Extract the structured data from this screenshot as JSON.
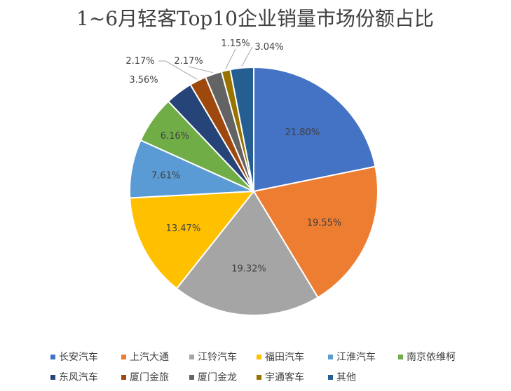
{
  "chart_data": {
    "type": "pie",
    "title": "1~6月轻客Top10企业销量市场份额占比",
    "categories": [
      "长安汽车",
      "上汽大通",
      "江铃汽车",
      "福田汽车",
      "江淮汽车",
      "南京依维柯",
      "东风汽车",
      "厦门金旅",
      "厦门金龙",
      "宇通客车",
      "其他"
    ],
    "values": [
      21.8,
      19.55,
      19.32,
      13.47,
      7.61,
      6.16,
      3.56,
      2.17,
      2.17,
      1.15,
      3.04
    ],
    "labels": [
      "21.80%",
      "19.55%",
      "19.32%",
      "13.47%",
      "7.61%",
      "6.16%",
      "3.56%",
      "2.17%",
      "2.17%",
      "1.15%",
      "3.04%"
    ],
    "colors": [
      "#4472C4",
      "#ED7D31",
      "#A5A5A5",
      "#FFC000",
      "#5B9BD5",
      "#70AD47",
      "#264478",
      "#9E480E",
      "#636363",
      "#997300",
      "#255E91"
    ],
    "legend_position": "bottom"
  }
}
